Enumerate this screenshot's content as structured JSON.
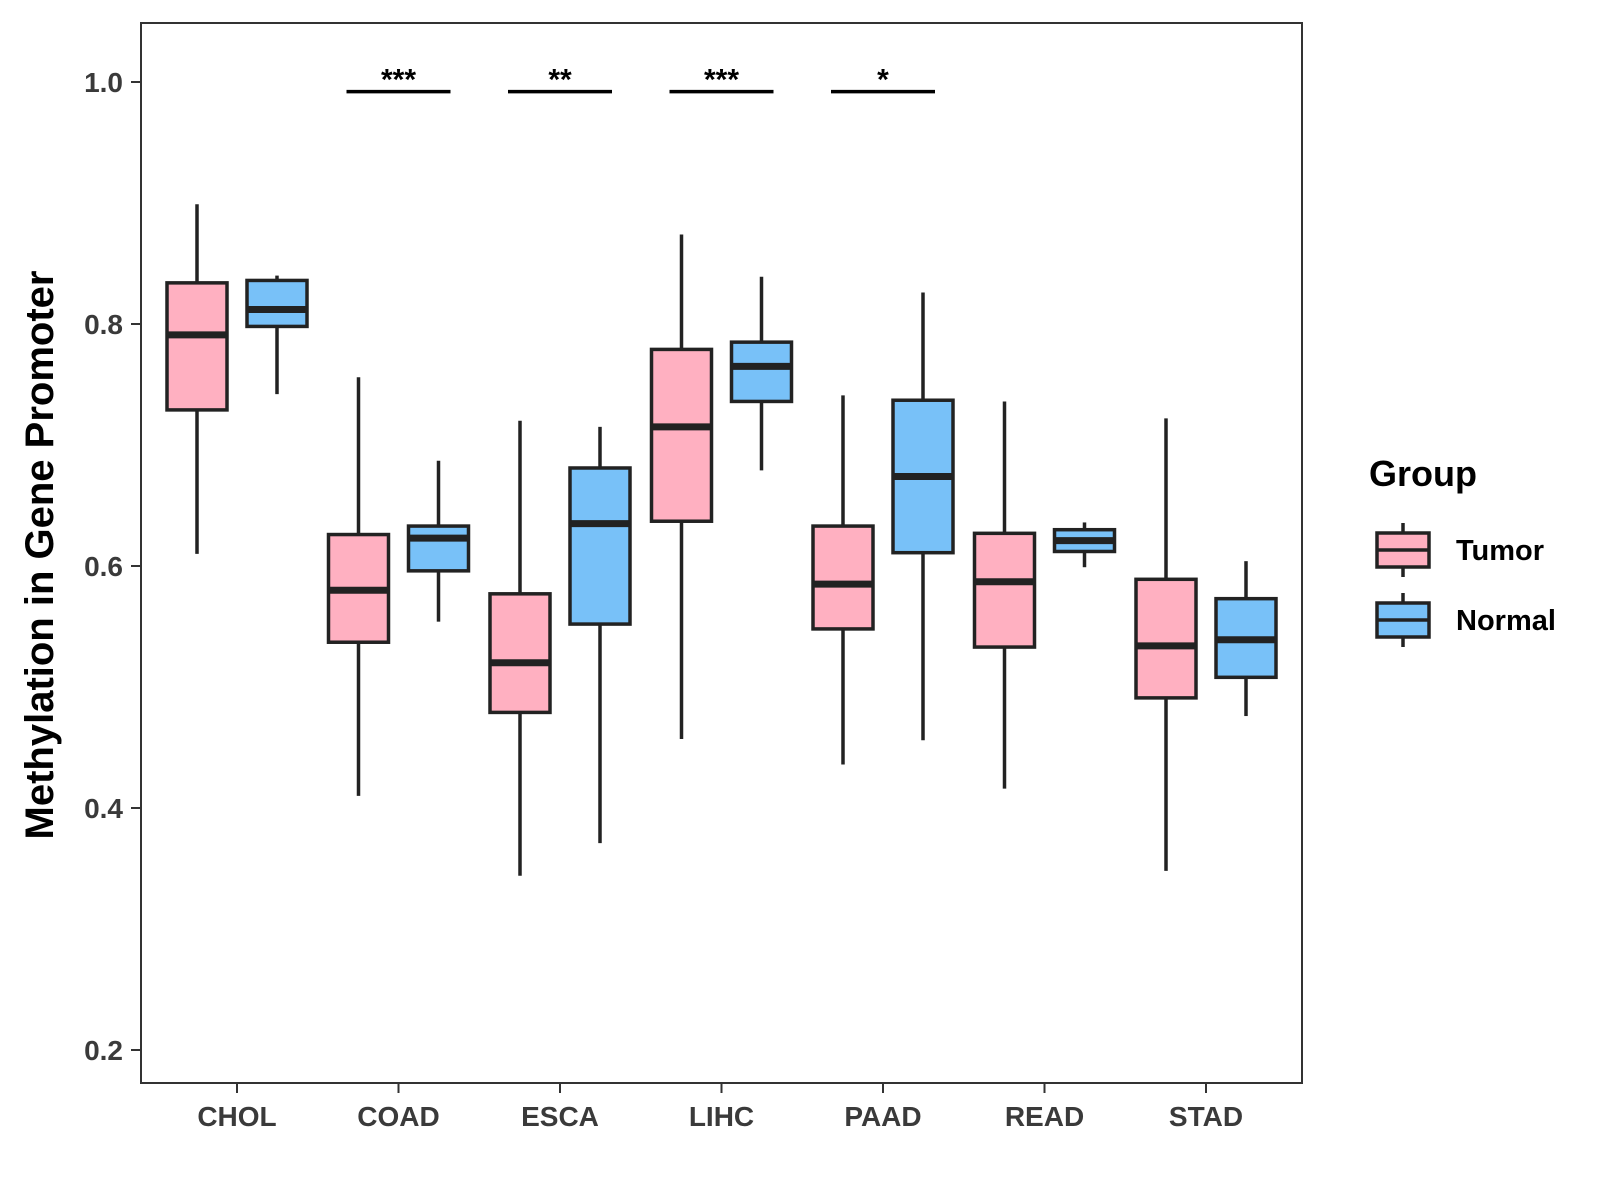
{
  "chart_data": {
    "type": "boxplot",
    "title": "",
    "xlabel": "",
    "ylabel": "Methylation in Gene Promoter",
    "ylim": [
      0.19,
      1.05
    ],
    "yticks": [
      0.2,
      0.4,
      0.6,
      0.8,
      1.0
    ],
    "ytick_labels": [
      "0.2",
      "0.4",
      "0.6",
      "0.8",
      "1.0"
    ],
    "categories": [
      "CHOL",
      "COAD",
      "ESCA",
      "LIHC",
      "PAAD",
      "READ",
      "STAD"
    ],
    "legend": {
      "title": "Group",
      "position": "right",
      "entries": [
        "Tumor",
        "Normal"
      ]
    },
    "colors": {
      "Tumor": "#FFB0C1",
      "Normal": "#78C1F8",
      "outline": "#222222"
    },
    "series": [
      {
        "name": "Tumor",
        "boxes": [
          {
            "category": "CHOL",
            "min": 0.61,
            "q1": 0.729,
            "median": 0.791,
            "q3": 0.834,
            "max": 0.899
          },
          {
            "category": "COAD",
            "min": 0.41,
            "q1": 0.537,
            "median": 0.58,
            "q3": 0.626,
            "max": 0.756
          },
          {
            "category": "ESCA",
            "min": 0.344,
            "q1": 0.479,
            "median": 0.52,
            "q3": 0.577,
            "max": 0.72
          },
          {
            "category": "LIHC",
            "min": 0.457,
            "q1": 0.637,
            "median": 0.715,
            "q3": 0.779,
            "max": 0.874
          },
          {
            "category": "PAAD",
            "min": 0.436,
            "q1": 0.548,
            "median": 0.585,
            "q3": 0.633,
            "max": 0.741
          },
          {
            "category": "READ",
            "min": 0.416,
            "q1": 0.533,
            "median": 0.587,
            "q3": 0.627,
            "max": 0.736
          },
          {
            "category": "STAD",
            "min": 0.348,
            "q1": 0.491,
            "median": 0.534,
            "q3": 0.589,
            "max": 0.722
          }
        ]
      },
      {
        "name": "Normal",
        "boxes": [
          {
            "category": "CHOL",
            "min": 0.742,
            "q1": 0.798,
            "median": 0.812,
            "q3": 0.836,
            "max": 0.84
          },
          {
            "category": "COAD",
            "min": 0.554,
            "q1": 0.596,
            "median": 0.623,
            "q3": 0.633,
            "max": 0.687
          },
          {
            "category": "ESCA",
            "min": 0.371,
            "q1": 0.552,
            "median": 0.635,
            "q3": 0.681,
            "max": 0.715
          },
          {
            "category": "LIHC",
            "min": 0.679,
            "q1": 0.736,
            "median": 0.765,
            "q3": 0.785,
            "max": 0.839
          },
          {
            "category": "PAAD",
            "min": 0.456,
            "q1": 0.611,
            "median": 0.674,
            "q3": 0.737,
            "max": 0.826
          },
          {
            "category": "READ",
            "min": 0.599,
            "q1": 0.612,
            "median": 0.621,
            "q3": 0.63,
            "max": 0.636
          },
          {
            "category": "STAD",
            "min": 0.476,
            "q1": 0.508,
            "median": 0.539,
            "q3": 0.573,
            "max": 0.604
          }
        ]
      }
    ],
    "annotations": [
      {
        "category": "COAD",
        "label": "***",
        "y": 0.992
      },
      {
        "category": "ESCA",
        "label": "**",
        "y": 0.992
      },
      {
        "category": "LIHC",
        "label": "***",
        "y": 0.992
      },
      {
        "category": "PAAD",
        "label": "*",
        "y": 0.992
      }
    ]
  }
}
